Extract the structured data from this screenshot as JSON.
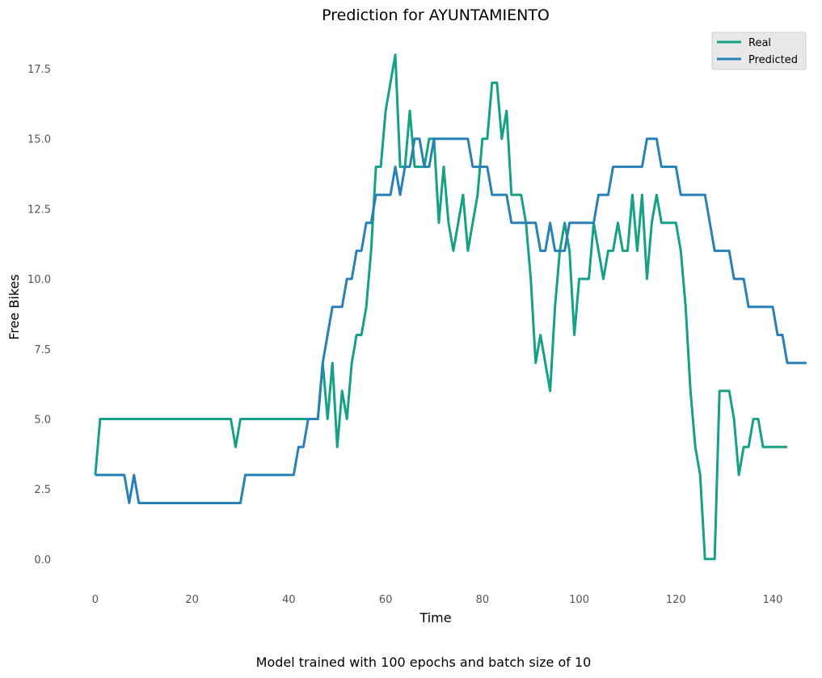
{
  "chart_data": {
    "type": "line",
    "title": "Prediction for AYUNTAMIENTO",
    "xlabel": "Time",
    "ylabel": "Free Bikes",
    "caption": "Model trained with 100 epochs and batch size of 10",
    "xlim": [
      -7,
      144
    ],
    "ylim": [
      -0.9,
      18.8
    ],
    "xticks": [
      0,
      20,
      40,
      60,
      80,
      100,
      120,
      140
    ],
    "yticks": [
      0.0,
      2.5,
      5.0,
      7.5,
      10.0,
      12.5,
      15.0,
      17.5
    ],
    "xtick_labels": [
      "0",
      "20",
      "40",
      "60",
      "80",
      "100",
      "120",
      "140"
    ],
    "ytick_labels": [
      "0.0",
      "2.5",
      "5.0",
      "7.5",
      "10.0",
      "12.5",
      "15.0",
      "17.5"
    ],
    "grid": false,
    "legend_position": "top-right",
    "series": [
      {
        "name": "Real",
        "color": "#16a085",
        "values": [
          3,
          5,
          5,
          5,
          5,
          5,
          5,
          5,
          5,
          5,
          5,
          5,
          5,
          5,
          5,
          5,
          5,
          5,
          5,
          5,
          5,
          5,
          5,
          5,
          5,
          5,
          5,
          5,
          5,
          4,
          5,
          5,
          5,
          5,
          5,
          5,
          5,
          5,
          5,
          5,
          5,
          5,
          5,
          5,
          5,
          5,
          5,
          7,
          5,
          7,
          4,
          6,
          5,
          7,
          8,
          8,
          9,
          11,
          14,
          14,
          16,
          17,
          18,
          14,
          14,
          16,
          14,
          14,
          14,
          15,
          15,
          12,
          14,
          12,
          11,
          12,
          13,
          11,
          12,
          13,
          15,
          15,
          17,
          17,
          15,
          16,
          13,
          13,
          13,
          12,
          10,
          7,
          8,
          7,
          6,
          9,
          11,
          12,
          11,
          8,
          10,
          10,
          10,
          12,
          11,
          10,
          11,
          11,
          12,
          11,
          11,
          13,
          11,
          13,
          10,
          12,
          13,
          12,
          12,
          12,
          12,
          11,
          9,
          6,
          4,
          3,
          0,
          0,
          0,
          6,
          6,
          6,
          5,
          3,
          4,
          4,
          5,
          5,
          4,
          4,
          4,
          4,
          4,
          4
        ]
      },
      {
        "name": "Predicted",
        "color": "#2980b9",
        "values": [
          3,
          3,
          3,
          3,
          3,
          3,
          3,
          2,
          3,
          2,
          2,
          2,
          2,
          2,
          2,
          2,
          2,
          2,
          2,
          2,
          2,
          2,
          2,
          2,
          2,
          2,
          2,
          2,
          2,
          2,
          2,
          3,
          3,
          3,
          3,
          3,
          3,
          3,
          3,
          3,
          3,
          3,
          4,
          4,
          5,
          5,
          5,
          7,
          8,
          9,
          9,
          9,
          10,
          10,
          11,
          11,
          12,
          12,
          13,
          13,
          13,
          13,
          14,
          13,
          14,
          14,
          15,
          15,
          14,
          14,
          15,
          15,
          15,
          15,
          15,
          15,
          15,
          15,
          14,
          14,
          14,
          14,
          13,
          13,
          13,
          13,
          12,
          12,
          12,
          12,
          12,
          12,
          11,
          11,
          12,
          11,
          11,
          11,
          12,
          12,
          12,
          12,
          12,
          12,
          13,
          13,
          13,
          14,
          14,
          14,
          14,
          14,
          14,
          14,
          15,
          15,
          15,
          14,
          14,
          14,
          14,
          13,
          13,
          13,
          13,
          13,
          13,
          12,
          11,
          11,
          11,
          11,
          10,
          10,
          10,
          9,
          9,
          9,
          9,
          9,
          9,
          8,
          8,
          7,
          7,
          7,
          7,
          7
        ]
      }
    ]
  }
}
